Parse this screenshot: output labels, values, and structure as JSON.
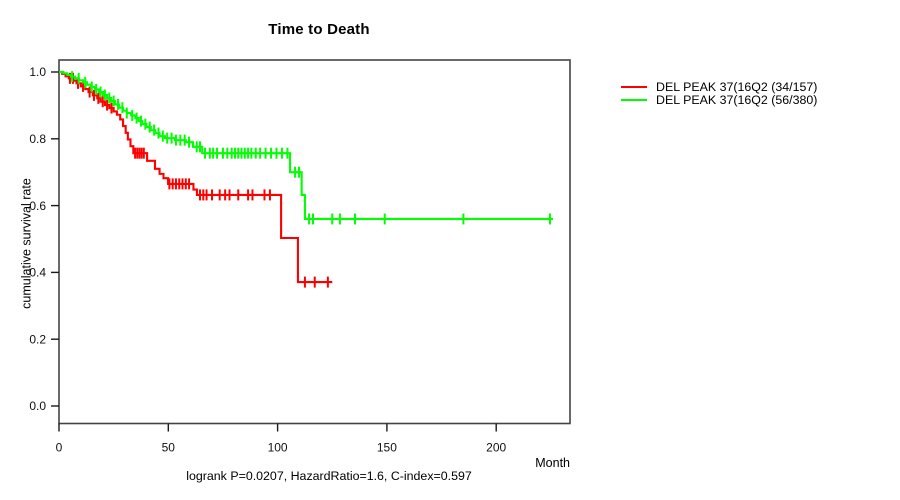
{
  "chart_data": {
    "type": "line",
    "subtype": "kaplan_meier_step",
    "title": "Time to Death",
    "xlabel": "Month",
    "ylabel": "cumulative survival rate",
    "footnote": "logrank P=0.0207, HazardRatio=1.6, C-index=0.597",
    "x_ticks": [
      0,
      50,
      100,
      150,
      200
    ],
    "y_tick_labels": [
      "0.0",
      "0.2",
      "0.4",
      "0.6",
      "0.8",
      "1.0"
    ],
    "xlim": [
      0,
      234
    ],
    "ylim": [
      -0.05,
      1.04
    ],
    "grid": false,
    "legend_position": "right-outside",
    "axis_color": "#1a1a1a",
    "box_color": "#444444",
    "series": [
      {
        "name": "DEL PEAK 37(16Q2 (34/157)",
        "color": "#FF0000",
        "end_month": 125,
        "steps": [
          [
            0,
            1.0
          ],
          [
            1.5,
            0.994
          ],
          [
            3,
            0.987
          ],
          [
            4.5,
            0.981
          ],
          [
            6.5,
            0.974
          ],
          [
            8,
            0.966
          ],
          [
            10,
            0.957
          ],
          [
            12,
            0.949
          ],
          [
            13.5,
            0.94
          ],
          [
            15.5,
            0.93
          ],
          [
            17.5,
            0.921
          ],
          [
            19,
            0.911
          ],
          [
            21,
            0.901
          ],
          [
            23,
            0.892
          ],
          [
            25,
            0.882
          ],
          [
            26.5,
            0.872
          ],
          [
            28,
            0.858
          ],
          [
            29.3,
            0.838
          ],
          [
            30.5,
            0.818
          ],
          [
            31.5,
            0.798
          ],
          [
            32.7,
            0.778
          ],
          [
            34,
            0.757
          ],
          [
            40.3,
            0.734
          ],
          [
            43.9,
            0.71
          ],
          [
            46,
            0.695
          ],
          [
            47.8,
            0.682
          ],
          [
            49.9,
            0.665
          ],
          [
            61.5,
            0.648
          ],
          [
            63.1,
            0.632
          ],
          [
            101.6,
            0.503
          ],
          [
            109.3,
            0.371
          ]
        ],
        "censor_ticks": [
          5,
          6.4,
          8.7,
          11,
          14,
          16,
          18,
          20,
          22,
          24,
          34.8,
          35.8,
          36.8,
          37.8,
          38.8,
          50.5,
          52,
          53.5,
          55,
          56.5,
          58,
          59.5,
          64.5,
          66,
          67.5,
          70,
          73.5,
          76,
          78,
          82,
          86.5,
          88.5,
          94,
          96.5,
          112.5,
          117,
          123
        ]
      },
      {
        "name": "DEL PEAK 37(16Q2 (56/380)",
        "color": "#00FF00",
        "end_month": 226,
        "steps": [
          [
            0,
            1.0
          ],
          [
            2,
            0.996
          ],
          [
            3.8,
            0.991
          ],
          [
            5.5,
            0.986
          ],
          [
            7.3,
            0.981
          ],
          [
            9.1,
            0.975
          ],
          [
            11,
            0.969
          ],
          [
            12.8,
            0.962
          ],
          [
            14.6,
            0.955
          ],
          [
            16.5,
            0.948
          ],
          [
            18.3,
            0.94
          ],
          [
            20.1,
            0.931
          ],
          [
            22,
            0.922
          ],
          [
            23.8,
            0.913
          ],
          [
            25.6,
            0.903
          ],
          [
            27.4,
            0.893
          ],
          [
            29.3,
            0.884
          ],
          [
            31,
            0.877
          ],
          [
            33,
            0.87
          ],
          [
            35,
            0.862
          ],
          [
            36.5,
            0.853
          ],
          [
            38,
            0.844
          ],
          [
            40,
            0.835
          ],
          [
            42,
            0.826
          ],
          [
            44,
            0.817
          ],
          [
            46,
            0.808
          ],
          [
            48.5,
            0.802
          ],
          [
            53,
            0.796
          ],
          [
            58,
            0.79
          ],
          [
            61.3,
            0.776
          ],
          [
            65.5,
            0.757
          ],
          [
            105.7,
            0.7
          ],
          [
            111,
            0.632
          ],
          [
            112.5,
            0.56
          ]
        ],
        "censor_ticks": [
          6,
          9,
          12,
          15,
          17,
          19,
          21,
          23,
          25,
          27,
          29,
          31,
          33.5,
          35.5,
          37.5,
          39.5,
          41.5,
          43.5,
          45.5,
          47.5,
          49.5,
          51.5,
          53.5,
          55.5,
          57.5,
          59.5,
          63,
          64.5,
          66.8,
          69,
          70.5,
          72.3,
          75,
          77,
          79,
          80.5,
          82,
          83.5,
          85,
          86.5,
          88,
          90,
          92,
          94.5,
          97,
          99.5,
          102,
          104.5,
          108,
          109.8,
          114.4,
          116.2,
          125,
          128.5,
          135.4,
          149,
          185,
          224.6
        ]
      }
    ]
  }
}
